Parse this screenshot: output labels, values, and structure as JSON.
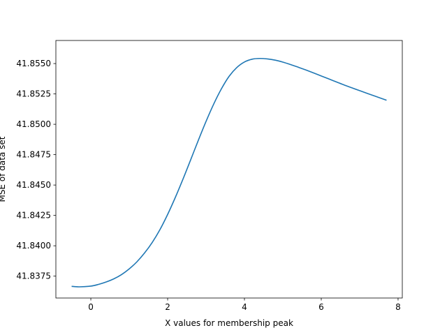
{
  "chart_data": {
    "type": "line",
    "title": "",
    "xlabel": "X values for membership peak",
    "ylabel": "MSE of data set",
    "xlim": [
      -0.91,
      8.11
    ],
    "ylim": [
      41.8357,
      41.8569
    ],
    "xticks": [
      0,
      2,
      4,
      6,
      8
    ],
    "yticks": [
      41.8375,
      41.84,
      41.8425,
      41.845,
      41.8475,
      41.85,
      41.8525,
      41.855
    ],
    "xtick_labels": [
      "0",
      "2",
      "4",
      "6",
      "8"
    ],
    "ytick_labels": [
      "41.8375",
      "41.8400",
      "41.8425",
      "41.8450",
      "41.8475",
      "41.8500",
      "41.8525",
      "41.8550"
    ],
    "grid": false,
    "line_color": "#1f77b4",
    "series": [
      {
        "x": [
          -0.5,
          -0.3,
          0.0,
          0.2,
          0.4,
          0.6,
          0.8,
          1.0,
          1.2,
          1.4,
          1.6,
          1.8,
          2.0,
          2.2,
          2.4,
          2.6,
          2.8,
          3.0,
          3.2,
          3.4,
          3.6,
          3.8,
          4.0,
          4.2,
          4.4,
          4.6,
          4.8,
          5.0,
          5.2,
          5.4,
          5.6,
          5.8,
          6.0,
          6.2,
          6.4,
          6.6,
          6.8,
          7.0,
          7.2,
          7.4,
          7.7
        ],
        "y": [
          41.83666,
          41.83662,
          41.83668,
          41.83682,
          41.83702,
          41.83728,
          41.83763,
          41.8381,
          41.83868,
          41.83941,
          41.84028,
          41.84133,
          41.84258,
          41.84398,
          41.84549,
          41.84708,
          41.84869,
          41.85024,
          41.85167,
          41.85292,
          41.85395,
          41.85467,
          41.85513,
          41.85536,
          41.85542,
          41.85538,
          41.85528,
          41.85512,
          41.85492,
          41.8547,
          41.85447,
          41.85423,
          41.85398,
          41.85373,
          41.85348,
          41.85323,
          41.853,
          41.85277,
          41.85254,
          41.85232,
          41.85198
        ]
      }
    ]
  }
}
